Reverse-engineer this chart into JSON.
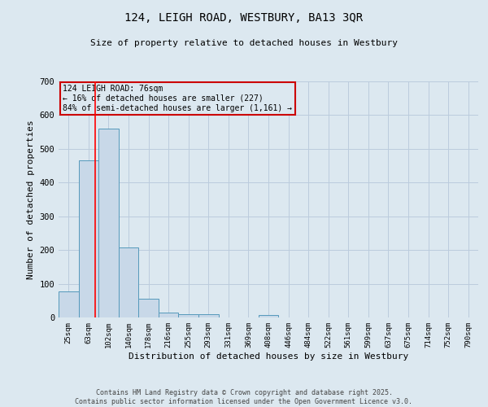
{
  "title1": "124, LEIGH ROAD, WESTBURY, BA13 3QR",
  "title2": "Size of property relative to detached houses in Westbury",
  "xlabel": "Distribution of detached houses by size in Westbury",
  "ylabel": "Number of detached properties",
  "categories": [
    "25sqm",
    "63sqm",
    "102sqm",
    "140sqm",
    "178sqm",
    "216sqm",
    "255sqm",
    "293sqm",
    "331sqm",
    "369sqm",
    "408sqm",
    "446sqm",
    "484sqm",
    "522sqm",
    "561sqm",
    "599sqm",
    "637sqm",
    "675sqm",
    "714sqm",
    "752sqm",
    "790sqm"
  ],
  "values": [
    78,
    467,
    560,
    207,
    55,
    15,
    10,
    10,
    0,
    0,
    8,
    0,
    0,
    0,
    0,
    0,
    0,
    0,
    0,
    0,
    0
  ],
  "bar_color": "#c8d8e8",
  "bar_edge_color": "#5599bb",
  "grid_color": "#bbccdd",
  "bg_color": "#dce8f0",
  "property_label": "124 LEIGH ROAD: 76sqm",
  "annotation_line1": "← 16% of detached houses are smaller (227)",
  "annotation_line2": "84% of semi-detached houses are larger (1,161) →",
  "annotation_box_color": "#cc0000",
  "footer1": "Contains HM Land Registry data © Crown copyright and database right 2025.",
  "footer2": "Contains public sector information licensed under the Open Government Licence v3.0.",
  "ylim": [
    0,
    700
  ],
  "yticks": [
    0,
    100,
    200,
    300,
    400,
    500,
    600,
    700
  ]
}
